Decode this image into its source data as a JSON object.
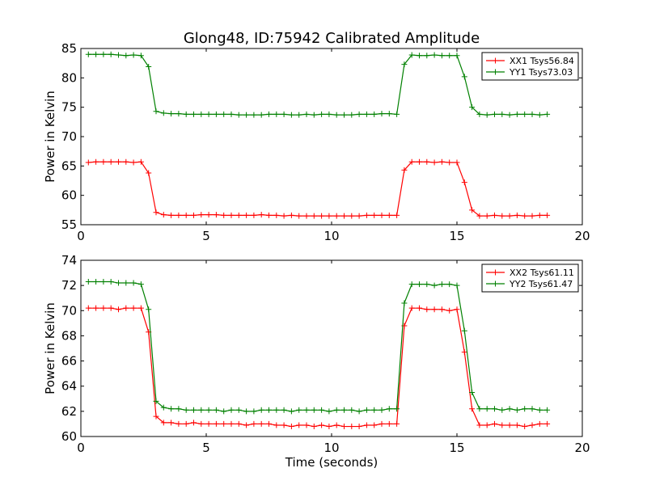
{
  "figure": {
    "title": "Glong48, ID:75942 Calibrated Amplitude"
  },
  "chart_data": [
    {
      "type": "line",
      "title": "Glong48, ID:75942 Calibrated Amplitude",
      "xlabel": "",
      "ylabel": "Power in Kelvin",
      "xlim": [
        0,
        20
      ],
      "ylim": [
        55,
        85
      ],
      "xticks": [
        0,
        5,
        10,
        15,
        20
      ],
      "yticks": [
        55,
        60,
        65,
        70,
        75,
        80,
        85
      ],
      "grid": false,
      "legend_position": "top-right",
      "x": [
        0.3,
        0.6,
        0.9,
        1.2,
        1.5,
        1.8,
        2.1,
        2.4,
        2.7,
        3.0,
        3.3,
        3.6,
        3.9,
        4.2,
        4.5,
        4.8,
        5.1,
        5.4,
        5.7,
        6.0,
        6.3,
        6.6,
        6.9,
        7.2,
        7.5,
        7.8,
        8.1,
        8.4,
        8.7,
        9.0,
        9.3,
        9.6,
        9.9,
        10.2,
        10.5,
        10.8,
        11.1,
        11.4,
        11.7,
        12.0,
        12.3,
        12.6,
        12.9,
        13.2,
        13.5,
        13.8,
        14.1,
        14.4,
        14.7,
        15.0,
        15.3,
        15.6,
        15.9,
        16.2,
        16.5,
        16.8,
        17.1,
        17.4,
        17.7,
        18.0,
        18.3,
        18.6
      ],
      "series": [
        {
          "name": "XX1 Tsys56.84",
          "color": "#ff0000",
          "values": [
            65.6,
            65.7,
            65.7,
            65.7,
            65.7,
            65.7,
            65.6,
            65.7,
            63.8,
            57.1,
            56.7,
            56.6,
            56.6,
            56.6,
            56.6,
            56.7,
            56.7,
            56.7,
            56.6,
            56.6,
            56.6,
            56.6,
            56.6,
            56.7,
            56.6,
            56.6,
            56.5,
            56.6,
            56.5,
            56.5,
            56.5,
            56.5,
            56.5,
            56.5,
            56.5,
            56.5,
            56.5,
            56.6,
            56.6,
            56.6,
            56.6,
            56.6,
            64.3,
            65.7,
            65.7,
            65.7,
            65.6,
            65.7,
            65.6,
            65.6,
            62.2,
            57.5,
            56.5,
            56.5,
            56.6,
            56.5,
            56.5,
            56.6,
            56.5,
            56.5,
            56.6,
            56.6
          ]
        },
        {
          "name": "YY1 Tsys73.03",
          "color": "#008000",
          "values": [
            84.0,
            84.0,
            84.0,
            84.0,
            83.9,
            83.8,
            83.9,
            83.8,
            81.9,
            74.3,
            74.0,
            73.9,
            73.9,
            73.8,
            73.8,
            73.8,
            73.8,
            73.8,
            73.8,
            73.8,
            73.7,
            73.7,
            73.7,
            73.7,
            73.8,
            73.8,
            73.8,
            73.7,
            73.7,
            73.8,
            73.7,
            73.8,
            73.8,
            73.7,
            73.7,
            73.7,
            73.8,
            73.8,
            73.8,
            73.9,
            73.9,
            73.8,
            82.3,
            83.9,
            83.8,
            83.8,
            83.9,
            83.8,
            83.8,
            83.8,
            80.2,
            75.0,
            73.8,
            73.7,
            73.8,
            73.8,
            73.7,
            73.8,
            73.8,
            73.8,
            73.7,
            73.8
          ]
        }
      ]
    },
    {
      "type": "line",
      "title": "",
      "xlabel": "Time (seconds)",
      "ylabel": "Power in Kelvin",
      "xlim": [
        0,
        20
      ],
      "ylim": [
        60,
        74
      ],
      "xticks": [
        0,
        5,
        10,
        15,
        20
      ],
      "yticks": [
        60,
        62,
        64,
        66,
        68,
        70,
        72,
        74
      ],
      "grid": false,
      "legend_position": "top-right",
      "x": [
        0.3,
        0.6,
        0.9,
        1.2,
        1.5,
        1.8,
        2.1,
        2.4,
        2.7,
        3.0,
        3.3,
        3.6,
        3.9,
        4.2,
        4.5,
        4.8,
        5.1,
        5.4,
        5.7,
        6.0,
        6.3,
        6.6,
        6.9,
        7.2,
        7.5,
        7.8,
        8.1,
        8.4,
        8.7,
        9.0,
        9.3,
        9.6,
        9.9,
        10.2,
        10.5,
        10.8,
        11.1,
        11.4,
        11.7,
        12.0,
        12.3,
        12.6,
        12.9,
        13.2,
        13.5,
        13.8,
        14.1,
        14.4,
        14.7,
        15.0,
        15.3,
        15.6,
        15.9,
        16.2,
        16.5,
        16.8,
        17.1,
        17.4,
        17.7,
        18.0,
        18.3,
        18.6
      ],
      "series": [
        {
          "name": "XX2 Tsys61.11",
          "color": "#ff0000",
          "values": [
            70.2,
            70.2,
            70.2,
            70.2,
            70.1,
            70.2,
            70.2,
            70.2,
            68.3,
            61.6,
            61.1,
            61.1,
            61.0,
            61.0,
            61.1,
            61.0,
            61.0,
            61.0,
            61.0,
            61.0,
            61.0,
            60.9,
            61.0,
            61.0,
            61.0,
            60.9,
            60.9,
            60.8,
            60.9,
            60.9,
            60.8,
            60.9,
            60.8,
            60.9,
            60.8,
            60.8,
            60.8,
            60.9,
            60.9,
            61.0,
            61.0,
            61.0,
            68.8,
            70.2,
            70.2,
            70.1,
            70.1,
            70.1,
            70.0,
            70.1,
            66.7,
            62.2,
            60.9,
            60.9,
            61.0,
            60.9,
            60.9,
            60.9,
            60.8,
            60.9,
            61.0,
            61.0
          ]
        },
        {
          "name": "YY2 Tsys61.47",
          "color": "#008000",
          "values": [
            72.3,
            72.3,
            72.3,
            72.3,
            72.2,
            72.2,
            72.2,
            72.1,
            70.1,
            62.8,
            62.3,
            62.2,
            62.2,
            62.1,
            62.1,
            62.1,
            62.1,
            62.1,
            62.0,
            62.1,
            62.1,
            62.0,
            62.0,
            62.1,
            62.1,
            62.1,
            62.1,
            62.0,
            62.1,
            62.1,
            62.1,
            62.1,
            62.0,
            62.1,
            62.1,
            62.1,
            62.0,
            62.1,
            62.1,
            62.1,
            62.2,
            62.2,
            70.6,
            72.1,
            72.1,
            72.1,
            72.0,
            72.1,
            72.1,
            72.0,
            68.4,
            63.5,
            62.2,
            62.2,
            62.2,
            62.1,
            62.2,
            62.1,
            62.2,
            62.2,
            62.1,
            62.1
          ]
        }
      ]
    }
  ]
}
